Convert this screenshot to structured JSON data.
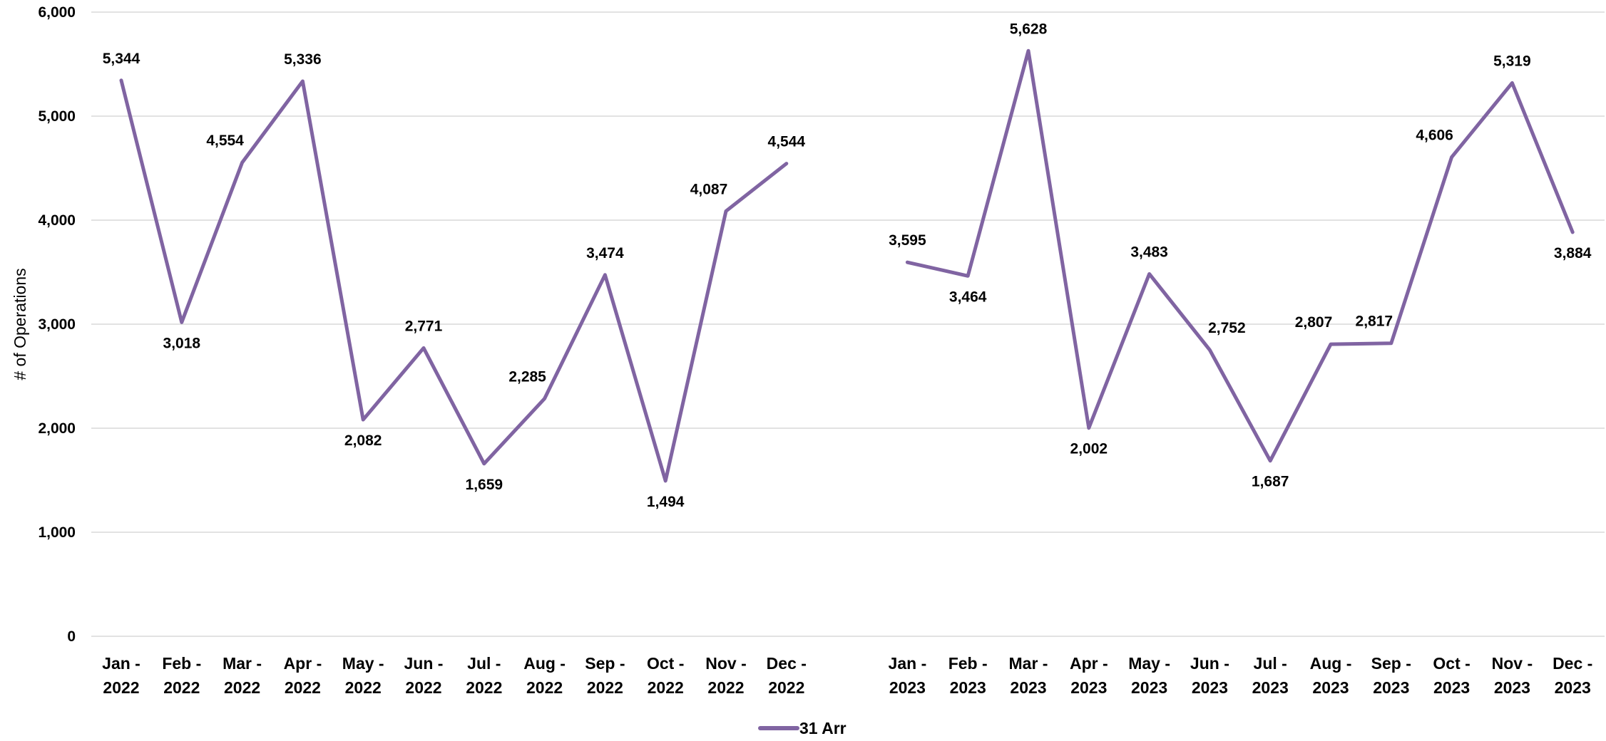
{
  "chart_data": {
    "type": "line",
    "title": "",
    "xlabel": "",
    "ylabel": "# of Operations",
    "ylim": [
      0,
      6000
    ],
    "yticks": [
      "0",
      "1,000",
      "2,000",
      "3,000",
      "4,000",
      "5,000",
      "6,000"
    ],
    "grid": true,
    "legend_position": "bottom",
    "colors": {
      "series": "#8064a2",
      "grid": "#d9d9d9",
      "text": "#000000"
    },
    "categories": [
      [
        "Jan -",
        "2022"
      ],
      [
        "Feb -",
        "2022"
      ],
      [
        "Mar -",
        "2022"
      ],
      [
        "Apr -",
        "2022"
      ],
      [
        "May -",
        "2022"
      ],
      [
        "Jun -",
        "2022"
      ],
      [
        "Jul -",
        "2022"
      ],
      [
        "Aug -",
        "2022"
      ],
      [
        "Sep -",
        "2022"
      ],
      [
        "Oct -",
        "2022"
      ],
      [
        "Nov -",
        "2022"
      ],
      [
        "Dec -",
        "2022"
      ],
      [
        "",
        ""
      ],
      [
        "Jan -",
        "2023"
      ],
      [
        "Feb -",
        "2023"
      ],
      [
        "Mar -",
        "2023"
      ],
      [
        "Apr -",
        "2023"
      ],
      [
        "May -",
        "2023"
      ],
      [
        "Jun -",
        "2023"
      ],
      [
        "Jul -",
        "2023"
      ],
      [
        "Aug -",
        "2023"
      ],
      [
        "Sep -",
        "2023"
      ],
      [
        "Oct -",
        "2023"
      ],
      [
        "Nov -",
        "2023"
      ],
      [
        "Dec -",
        "2023"
      ]
    ],
    "series": [
      {
        "name": "31 Arr",
        "values": [
          5344,
          3018,
          4554,
          5336,
          2082,
          2771,
          1659,
          2285,
          3474,
          1494,
          4087,
          4544,
          null,
          3595,
          3464,
          5628,
          2002,
          3483,
          2752,
          1687,
          2807,
          2817,
          4606,
          5319,
          3884
        ],
        "labels": [
          "5,344",
          "3,018",
          "4,554",
          "5,336",
          "2,082",
          "2,771",
          "1,659",
          "2,285",
          "3,474",
          "1,494",
          "4,087",
          "4,544",
          "",
          "3,595",
          "3,464",
          "5,628",
          "2,002",
          "3,483",
          "2,752",
          "1,687",
          "2,807",
          "2,817",
          "4,606",
          "5,319",
          "3,884"
        ]
      }
    ]
  }
}
